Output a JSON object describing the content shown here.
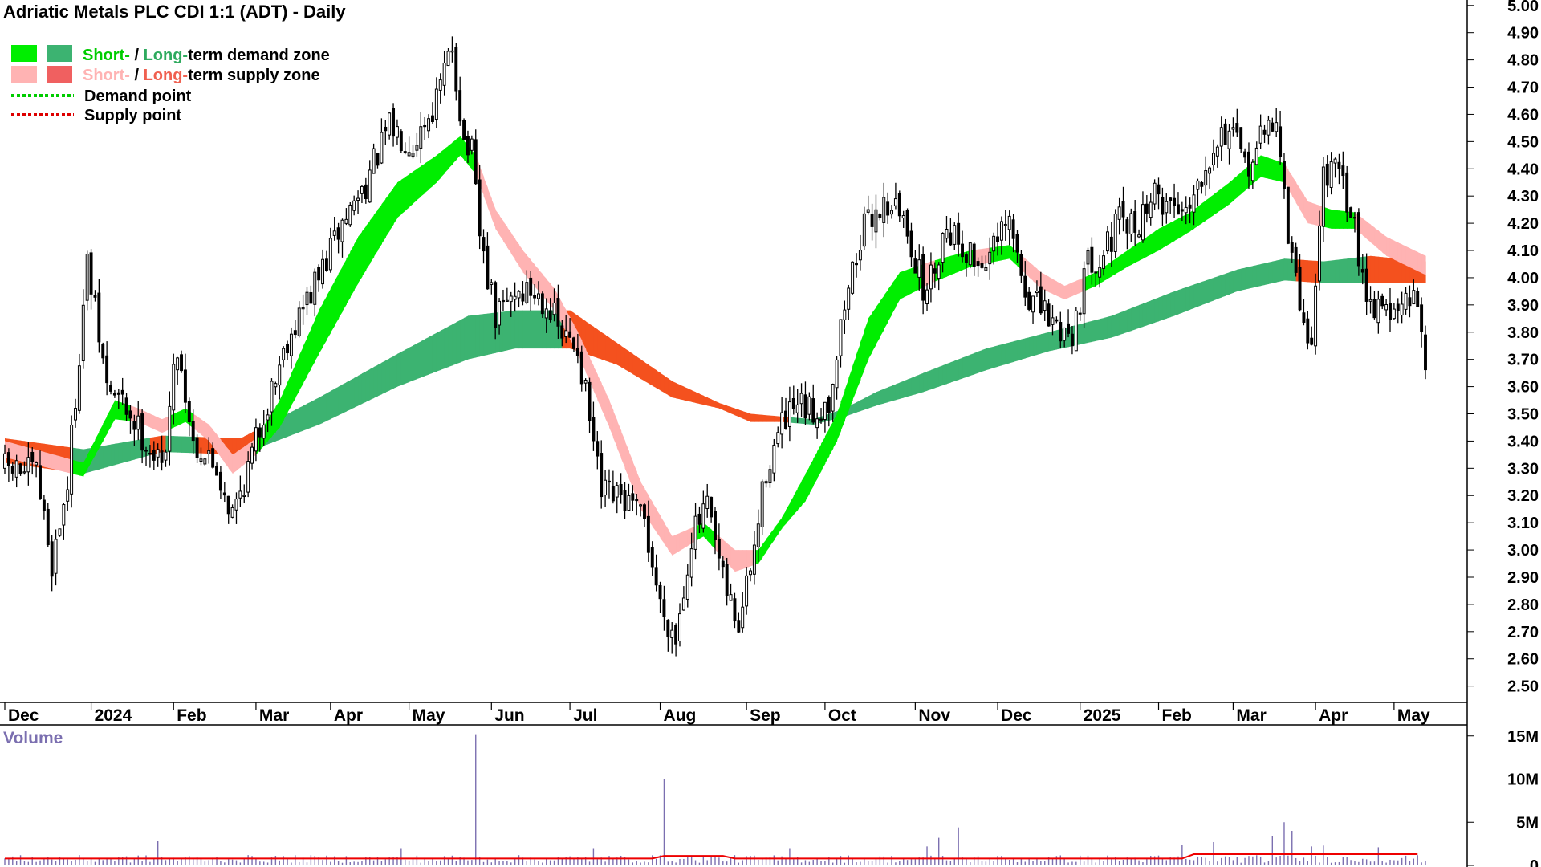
{
  "title": "Adriatic Metals PLC CDI 1:1 (ADT) - Daily",
  "legend": {
    "demand_zone": {
      "short": "Short-",
      "sep": " / ",
      "long": "Long-",
      "rest": "term demand zone"
    },
    "supply_zone": {
      "short": "Short-",
      "sep": " / ",
      "long": "Long-",
      "rest": "term supply zone"
    },
    "demand_point": "Demand point",
    "supply_point": "Supply point"
  },
  "colors": {
    "short_demand": "#00ee00",
    "long_demand": "#3cb371",
    "short_supply": "#ffb3b3",
    "long_supply": "#f4511e",
    "demand_point": "#00cc00",
    "supply_point": "#dd0000",
    "volume_bar": "#7b6fb0",
    "volume_avg": "#ee0000",
    "label_short_supply": "#ffb3b3",
    "label_long_supply": "#f06050"
  },
  "price_axis": {
    "labels": [
      "5.00",
      "4.90",
      "4.80",
      "4.70",
      "4.60",
      "4.50",
      "4.40",
      "4.30",
      "4.20",
      "4.10",
      "4.00",
      "3.90",
      "3.80",
      "3.70",
      "3.60",
      "3.50",
      "3.40",
      "3.30",
      "3.20",
      "3.10",
      "3.00",
      "2.90",
      "2.80",
      "2.70",
      "2.60",
      "2.50"
    ]
  },
  "volume_panel": {
    "label": "Volume",
    "axis_labels": [
      "15M",
      "10M",
      "5M",
      "0"
    ]
  },
  "chart_data": {
    "type": "candlestick",
    "title": "Adriatic Metals PLC CDI 1:1 (ADT) - Daily",
    "ylim": [
      2.44,
      5.02
    ],
    "y_ticks": [
      5.0,
      4.9,
      4.8,
      4.7,
      4.6,
      4.5,
      4.4,
      4.3,
      4.2,
      4.1,
      4.0,
      3.9,
      3.8,
      3.7,
      3.6,
      3.5,
      3.4,
      3.3,
      3.2,
      3.1,
      3.0,
      2.9,
      2.8,
      2.7,
      2.6,
      2.5
    ],
    "months": [
      {
        "label": "Dec",
        "idx": 0
      },
      {
        "label": "2024",
        "idx": 22
      },
      {
        "label": "Feb",
        "idx": 43
      },
      {
        "label": "Mar",
        "idx": 64
      },
      {
        "label": "Apr",
        "idx": 83
      },
      {
        "label": "May",
        "idx": 103
      },
      {
        "label": "Jun",
        "idx": 124
      },
      {
        "label": "Jul",
        "idx": 144
      },
      {
        "label": "Aug",
        "idx": 167
      },
      {
        "label": "Sep",
        "idx": 189
      },
      {
        "label": "Oct",
        "idx": 209
      },
      {
        "label": "Nov",
        "idx": 232
      },
      {
        "label": "Dec",
        "idx": 253
      },
      {
        "label": "2025",
        "idx": 274
      },
      {
        "label": "Feb",
        "idx": 294
      },
      {
        "label": "Mar",
        "idx": 313
      },
      {
        "label": "Apr",
        "idx": 334
      },
      {
        "label": "May",
        "idx": 354
      }
    ],
    "num_bars": 363,
    "price_path": [
      [
        0,
        3.3
      ],
      [
        8,
        3.28
      ],
      [
        12,
        2.95
      ],
      [
        16,
        3.25
      ],
      [
        21,
        4.05
      ],
      [
        26,
        3.6
      ],
      [
        31,
        3.52
      ],
      [
        36,
        3.4
      ],
      [
        40,
        3.3
      ],
      [
        44,
        3.75
      ],
      [
        48,
        3.4
      ],
      [
        54,
        3.3
      ],
      [
        58,
        3.13
      ],
      [
        62,
        3.3
      ],
      [
        66,
        3.5
      ],
      [
        72,
        3.78
      ],
      [
        80,
        4.0
      ],
      [
        86,
        4.2
      ],
      [
        92,
        4.35
      ],
      [
        98,
        4.55
      ],
      [
        104,
        4.5
      ],
      [
        110,
        4.65
      ],
      [
        114,
        4.85
      ],
      [
        117,
        4.5
      ],
      [
        119,
        4.45
      ],
      [
        121,
        4.15
      ],
      [
        125,
        3.85
      ],
      [
        130,
        3.95
      ],
      [
        134,
        3.95
      ],
      [
        138,
        3.92
      ],
      [
        142,
        3.78
      ],
      [
        146,
        3.75
      ],
      [
        152,
        3.2
      ],
      [
        158,
        3.18
      ],
      [
        163,
        3.1
      ],
      [
        167,
        2.8
      ],
      [
        171,
        2.68
      ],
      [
        175,
        3.05
      ],
      [
        179,
        3.15
      ],
      [
        183,
        2.88
      ],
      [
        187,
        2.72
      ],
      [
        191,
        3.0
      ],
      [
        194,
        3.3
      ],
      [
        198,
        3.45
      ],
      [
        202,
        3.52
      ],
      [
        206,
        3.5
      ],
      [
        210,
        3.55
      ],
      [
        214,
        3.9
      ],
      [
        218,
        4.15
      ],
      [
        222,
        4.25
      ],
      [
        226,
        4.28
      ],
      [
        230,
        4.18
      ],
      [
        234,
        3.95
      ],
      [
        236,
        4.0
      ],
      [
        240,
        4.2
      ],
      [
        244,
        4.12
      ],
      [
        248,
        4.05
      ],
      [
        252,
        4.1
      ],
      [
        256,
        4.2
      ],
      [
        260,
        3.95
      ],
      [
        264,
        3.88
      ],
      [
        268,
        3.82
      ],
      [
        272,
        3.8
      ],
      [
        276,
        4.05
      ],
      [
        280,
        4.1
      ],
      [
        284,
        4.2
      ],
      [
        288,
        4.18
      ],
      [
        292,
        4.3
      ],
      [
        296,
        4.28
      ],
      [
        300,
        4.25
      ],
      [
        304,
        4.35
      ],
      [
        308,
        4.5
      ],
      [
        312,
        4.55
      ],
      [
        316,
        4.4
      ],
      [
        320,
        4.5
      ],
      [
        324,
        4.6
      ],
      [
        327,
        4.15
      ],
      [
        330,
        3.9
      ],
      [
        333,
        3.75
      ],
      [
        336,
        4.4
      ],
      [
        339,
        4.38
      ],
      [
        342,
        4.3
      ],
      [
        345,
        4.1
      ],
      [
        348,
        3.9
      ],
      [
        351,
        3.92
      ],
      [
        354,
        3.85
      ],
      [
        357,
        3.9
      ],
      [
        360,
        3.92
      ],
      [
        362,
        3.72
      ]
    ],
    "zones": {
      "short_term": [
        {
          "idx": 0,
          "u": 3.4,
          "l": 3.34
        },
        {
          "idx": 20,
          "u": 3.32,
          "l": 3.27
        },
        {
          "idx": 28,
          "u": 3.55,
          "l": 3.48
        },
        {
          "idx": 34,
          "u": 3.52,
          "l": 3.47
        },
        {
          "idx": 40,
          "u": 3.48,
          "l": 3.43
        },
        {
          "idx": 46,
          "u": 3.52,
          "l": 3.47
        },
        {
          "idx": 52,
          "u": 3.46,
          "l": 3.4
        },
        {
          "idx": 58,
          "u": 3.35,
          "l": 3.28
        },
        {
          "idx": 64,
          "u": 3.41,
          "l": 3.35
        },
        {
          "idx": 70,
          "u": 3.55,
          "l": 3.45
        },
        {
          "idx": 80,
          "u": 3.88,
          "l": 3.72
        },
        {
          "idx": 90,
          "u": 4.15,
          "l": 3.98
        },
        {
          "idx": 100,
          "u": 4.35,
          "l": 4.22
        },
        {
          "idx": 110,
          "u": 4.45,
          "l": 4.35
        },
        {
          "idx": 116,
          "u": 4.52,
          "l": 4.45
        },
        {
          "idx": 120,
          "u": 4.45,
          "l": 4.38
        },
        {
          "idx": 125,
          "u": 4.25,
          "l": 4.18
        },
        {
          "idx": 132,
          "u": 4.1,
          "l": 4.02
        },
        {
          "idx": 140,
          "u": 3.96,
          "l": 3.88
        },
        {
          "idx": 146,
          "u": 3.8,
          "l": 3.72
        },
        {
          "idx": 154,
          "u": 3.55,
          "l": 3.45
        },
        {
          "idx": 162,
          "u": 3.25,
          "l": 3.15
        },
        {
          "idx": 170,
          "u": 3.05,
          "l": 2.98
        },
        {
          "idx": 178,
          "u": 3.1,
          "l": 3.05
        },
        {
          "idx": 186,
          "u": 3.0,
          "l": 2.92
        },
        {
          "idx": 192,
          "u": 3.0,
          "l": 2.95
        },
        {
          "idx": 198,
          "u": 3.12,
          "l": 3.08
        },
        {
          "idx": 204,
          "u": 3.28,
          "l": 3.18
        },
        {
          "idx": 212,
          "u": 3.5,
          "l": 3.4
        },
        {
          "idx": 220,
          "u": 3.85,
          "l": 3.7
        },
        {
          "idx": 228,
          "u": 4.02,
          "l": 3.92
        },
        {
          "idx": 236,
          "u": 4.06,
          "l": 3.98
        },
        {
          "idx": 246,
          "u": 4.1,
          "l": 4.04
        },
        {
          "idx": 256,
          "u": 4.12,
          "l": 4.07
        },
        {
          "idx": 264,
          "u": 4.02,
          "l": 3.96
        },
        {
          "idx": 270,
          "u": 3.97,
          "l": 3.92
        },
        {
          "idx": 278,
          "u": 4.02,
          "l": 3.97
        },
        {
          "idx": 286,
          "u": 4.1,
          "l": 4.04
        },
        {
          "idx": 294,
          "u": 4.18,
          "l": 4.1
        },
        {
          "idx": 302,
          "u": 4.24,
          "l": 4.17
        },
        {
          "idx": 312,
          "u": 4.35,
          "l": 4.27
        },
        {
          "idx": 320,
          "u": 4.45,
          "l": 4.37
        },
        {
          "idx": 326,
          "u": 4.42,
          "l": 4.35
        },
        {
          "idx": 332,
          "u": 4.28,
          "l": 4.2
        },
        {
          "idx": 338,
          "u": 4.25,
          "l": 4.18
        },
        {
          "idx": 344,
          "u": 4.24,
          "l": 4.18
        },
        {
          "idx": 352,
          "u": 4.15,
          "l": 4.08
        },
        {
          "idx": 362,
          "u": 4.08,
          "l": 4.01
        }
      ],
      "long_term": [
        {
          "idx": 0,
          "u": 3.41,
          "l": 3.32
        },
        {
          "idx": 20,
          "u": 3.37,
          "l": 3.28
        },
        {
          "idx": 40,
          "u": 3.42,
          "l": 3.36
        },
        {
          "idx": 60,
          "u": 3.41,
          "l": 3.35
        },
        {
          "idx": 80,
          "u": 3.56,
          "l": 3.46
        },
        {
          "idx": 100,
          "u": 3.72,
          "l": 3.6
        },
        {
          "idx": 118,
          "u": 3.86,
          "l": 3.7
        },
        {
          "idx": 130,
          "u": 3.88,
          "l": 3.74
        },
        {
          "idx": 144,
          "u": 3.88,
          "l": 3.74
        },
        {
          "idx": 156,
          "u": 3.76,
          "l": 3.68
        },
        {
          "idx": 170,
          "u": 3.62,
          "l": 3.56
        },
        {
          "idx": 182,
          "u": 3.54,
          "l": 3.52
        },
        {
          "idx": 190,
          "u": 3.5,
          "l": 3.47
        },
        {
          "idx": 198,
          "u": 3.49,
          "l": 3.47
        },
        {
          "idx": 206,
          "u": 3.48,
          "l": 3.46
        },
        {
          "idx": 214,
          "u": 3.52,
          "l": 3.49
        },
        {
          "idx": 222,
          "u": 3.58,
          "l": 3.53
        },
        {
          "idx": 234,
          "u": 3.65,
          "l": 3.58
        },
        {
          "idx": 250,
          "u": 3.74,
          "l": 3.66
        },
        {
          "idx": 266,
          "u": 3.8,
          "l": 3.73
        },
        {
          "idx": 282,
          "u": 3.86,
          "l": 3.78
        },
        {
          "idx": 298,
          "u": 3.95,
          "l": 3.86
        },
        {
          "idx": 314,
          "u": 4.03,
          "l": 3.95
        },
        {
          "idx": 326,
          "u": 4.07,
          "l": 3.99
        },
        {
          "idx": 336,
          "u": 4.06,
          "l": 3.98
        },
        {
          "idx": 348,
          "u": 4.08,
          "l": 3.98
        },
        {
          "idx": 362,
          "u": 4.06,
          "l": 3.98
        }
      ]
    },
    "volume": {
      "unit": "M",
      "ylim": [
        0,
        16
      ],
      "avg_level": 0.8,
      "spikes": [
        {
          "idx": 39,
          "v": 2.8
        },
        {
          "idx": 101,
          "v": 2.0
        },
        {
          "idx": 120,
          "v": 15.2
        },
        {
          "idx": 150,
          "v": 2.0
        },
        {
          "idx": 168,
          "v": 10.0
        },
        {
          "idx": 200,
          "v": 2.0
        },
        {
          "idx": 235,
          "v": 2.2
        },
        {
          "idx": 238,
          "v": 3.2
        },
        {
          "idx": 243,
          "v": 4.4
        },
        {
          "idx": 300,
          "v": 2.4
        },
        {
          "idx": 308,
          "v": 2.7
        },
        {
          "idx": 323,
          "v": 3.4
        },
        {
          "idx": 326,
          "v": 5.0
        },
        {
          "idx": 328,
          "v": 4.0
        },
        {
          "idx": 333,
          "v": 2.2
        },
        {
          "idx": 336,
          "v": 2.3
        },
        {
          "idx": 350,
          "v": 2.1
        }
      ]
    }
  }
}
